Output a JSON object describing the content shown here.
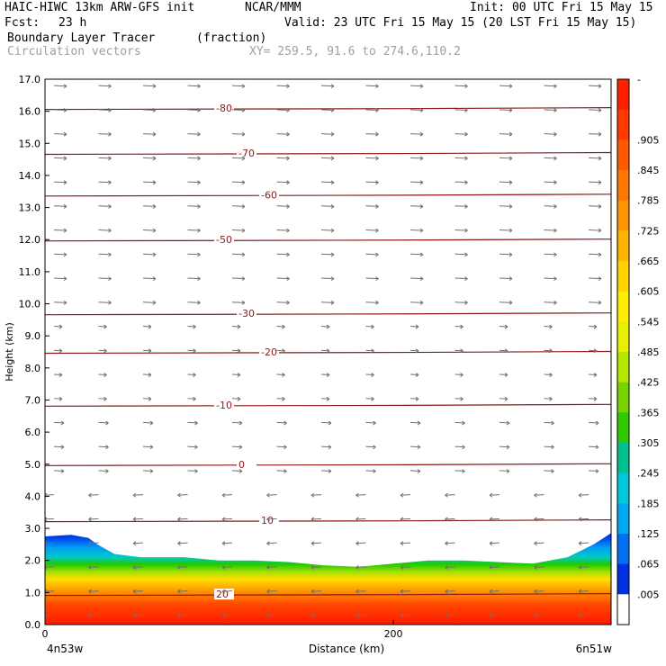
{
  "header": {
    "title_left": "HAIC-HIWC 13km ARW-GFS init",
    "org": "NCAR/MMM",
    "init": "Init: 00 UTC Fri 15 May 15",
    "fcst_label": "Fcst:",
    "fcst_value": "23 h",
    "valid": "Valid: 23 UTC Fri 15 May 15 (20 LST Fri 15 May 15)",
    "field_name": "Boundary Layer Tracer",
    "field_units": "(fraction)",
    "overlay_name": "Circulation vectors",
    "xy": "XY= 259.5, 91.6 to 274.6,110.2"
  },
  "chart_data": {
    "type": "heatmap",
    "xlabel": "Distance (km)",
    "ylabel": "Height (km)",
    "xlim": [
      0,
      325
    ],
    "ylim": [
      0,
      17
    ],
    "x_ticks": [
      0,
      200
    ],
    "x_tick_labels": [
      "0",
      "200"
    ],
    "x_end_labels": [
      "4n53w",
      "6n51w"
    ],
    "y_ticks": [
      0,
      1,
      2,
      3,
      4,
      5,
      6,
      7,
      8,
      9,
      10,
      11,
      12,
      13,
      14,
      15,
      16,
      17
    ],
    "y_tick_labels": [
      "0.0",
      "1.0",
      "2.0",
      "3.0",
      "4.0",
      "5.0",
      "6.0",
      "7.0",
      "8.0",
      "9.0",
      "10.0",
      "11.0",
      "12.0",
      "13.0",
      "14.0",
      "15.0",
      "16.0",
      "17.0"
    ],
    "colorbar": {
      "labels": [
        "-",
        ".905",
        ".845",
        ".785",
        ".725",
        ".665",
        ".605",
        ".545",
        ".485",
        ".425",
        ".365",
        ".305",
        ".245",
        ".185",
        ".125",
        ".065",
        ".005"
      ],
      "colors": [
        "#ff2000",
        "#ff3a00",
        "#ff5a00",
        "#ff7800",
        "#ff9600",
        "#ffb400",
        "#ffd200",
        "#ffee00",
        "#e6f000",
        "#b4e600",
        "#78d200",
        "#30c800",
        "#00c090",
        "#00c8d8",
        "#00a8f0",
        "#0070f0",
        "#0030e0",
        "#ffffff"
      ]
    },
    "tracer_top_km": [
      [
        0,
        2.75
      ],
      [
        15,
        2.8
      ],
      [
        25,
        2.7
      ],
      [
        30,
        2.5
      ],
      [
        40,
        2.2
      ],
      [
        55,
        2.1
      ],
      [
        80,
        2.1
      ],
      [
        100,
        2.0
      ],
      [
        120,
        2.0
      ],
      [
        140,
        1.95
      ],
      [
        160,
        1.85
      ],
      [
        180,
        1.8
      ],
      [
        200,
        1.9
      ],
      [
        220,
        2.0
      ],
      [
        240,
        2.0
      ],
      [
        260,
        1.95
      ],
      [
        280,
        1.9
      ],
      [
        300,
        2.1
      ],
      [
        315,
        2.5
      ],
      [
        325,
        2.85
      ]
    ],
    "temperature_contours": [
      {
        "label": "-80",
        "height_km": 16.1
      },
      {
        "label": "-70",
        "height_km": 14.7
      },
      {
        "label": "-60",
        "height_km": 13.4
      },
      {
        "label": "-50",
        "height_km": 12.0
      },
      {
        "label": "-30",
        "height_km": 9.7
      },
      {
        "label": "-20",
        "height_km": 8.5
      },
      {
        "label": "-10",
        "height_km": 6.85
      },
      {
        "label": "0",
        "height_km": 5.0
      },
      {
        "label": "10",
        "height_km": 3.25
      },
      {
        "label": "20",
        "height_km": 0.95
      }
    ]
  },
  "colors": {
    "contour": "#8b1a1a",
    "vector": "#707070",
    "axis": "#000000"
  }
}
